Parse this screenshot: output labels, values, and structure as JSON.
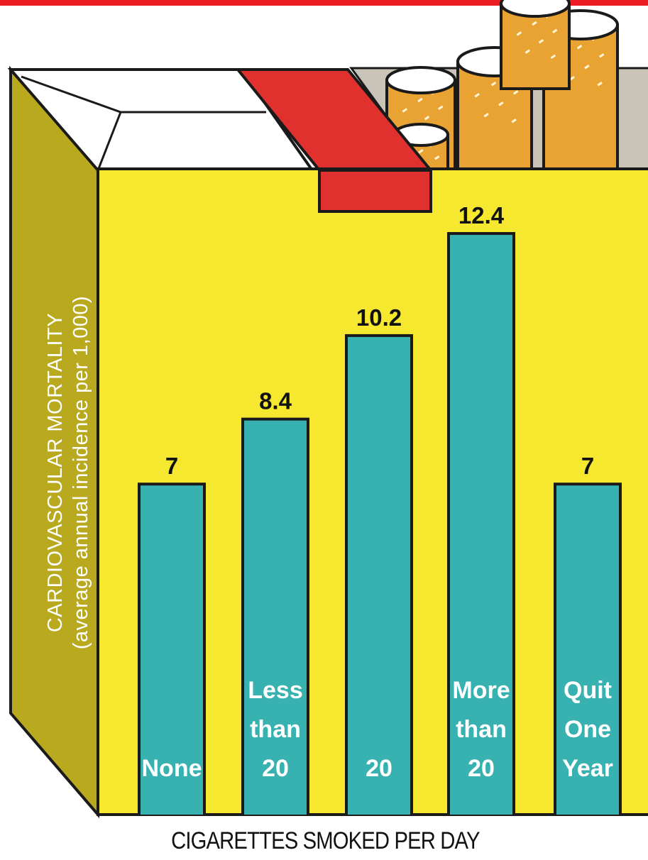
{
  "chart_data": {
    "type": "bar",
    "categories": [
      [
        "None"
      ],
      [
        "Less",
        "than",
        "20"
      ],
      [
        "20"
      ],
      [
        "More",
        "than",
        "20"
      ],
      [
        "Quit",
        "One",
        "Year"
      ]
    ],
    "values": [
      7,
      8.4,
      10.2,
      12.4,
      7
    ],
    "data_labels": [
      "7",
      "8.4",
      "10.2",
      "12.4",
      "7"
    ],
    "ylabel": [
      "CARDIOVASCULAR MORTALITY",
      "(average annual incidence per 1,000)"
    ],
    "xlabel": "CIGARETTES SMOKED PER DAY",
    "ylim": [
      0,
      16
    ],
    "grid": false
  },
  "colors": {
    "pack_front": "#f5e82e",
    "pack_side": "#b9a91f",
    "pack_lid": "#ffffff",
    "tear_strip": "#e0312f",
    "bar_fill": "#38b2b0",
    "outline": "#1a1a1a",
    "cigarette_tobacco": "#e8a332",
    "top_band": "#ee1c25"
  },
  "illustration": "cigarette-pack-icon"
}
